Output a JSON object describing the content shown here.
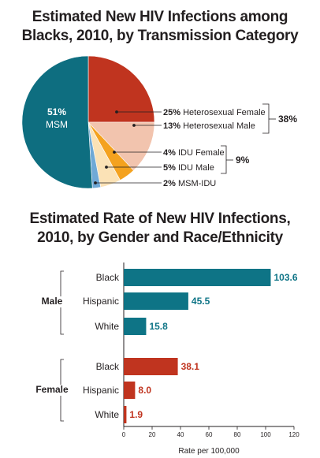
{
  "chart_data": [
    {
      "type": "pie",
      "title_lines": [
        "Estimated New HIV Infections among",
        "Blacks, 2010, by Transmission Category"
      ],
      "slices": [
        {
          "pct": "25%",
          "label": "Heterosexual Female",
          "value": 25,
          "color": "#c0341f"
        },
        {
          "pct": "13%",
          "label": "Heterosexual Male",
          "value": 13,
          "color": "#f2c4ae"
        },
        {
          "pct": "4%",
          "label": "IDU Female",
          "value": 4,
          "color": "#f4a21f"
        },
        {
          "pct": "5%",
          "label": "IDU Male",
          "value": 5,
          "color": "#fbe2b6"
        },
        {
          "pct": "2%",
          "label": "MSM-IDU",
          "value": 2,
          "color": "#6fa9d6"
        },
        {
          "pct": "51%",
          "label": "MSM",
          "value": 51,
          "color": "#0e6e80"
        }
      ],
      "brackets": [
        {
          "label": "38%",
          "spans": [
            "Heterosexual Female",
            "Heterosexual Male"
          ]
        },
        {
          "label": "9%",
          "spans": [
            "IDU Female",
            "IDU Male"
          ]
        }
      ]
    },
    {
      "type": "bar",
      "orientation": "horizontal",
      "title_lines": [
        "Estimated Rate of New HIV Infections,",
        "2010, by Gender and Race/Ethnicity"
      ],
      "groups": [
        {
          "name": "Male",
          "color": "#0e7486",
          "categories": [
            "Black",
            "Hispanic",
            "White"
          ],
          "values": [
            103.6,
            45.5,
            15.8
          ],
          "labels": [
            "103.6",
            "45.5",
            "15.8"
          ]
        },
        {
          "name": "Female",
          "color": "#c0341f",
          "categories": [
            "Black",
            "Hispanic",
            "White"
          ],
          "values": [
            38.1,
            8.0,
            1.9
          ],
          "labels": [
            "38.1",
            "8.0",
            "1.9"
          ]
        }
      ],
      "xlabel": "Rate per 100,000",
      "xlim": [
        0,
        120
      ],
      "xticks": [
        "0",
        "20",
        "40",
        "60",
        "80",
        "100",
        "120"
      ]
    }
  ]
}
